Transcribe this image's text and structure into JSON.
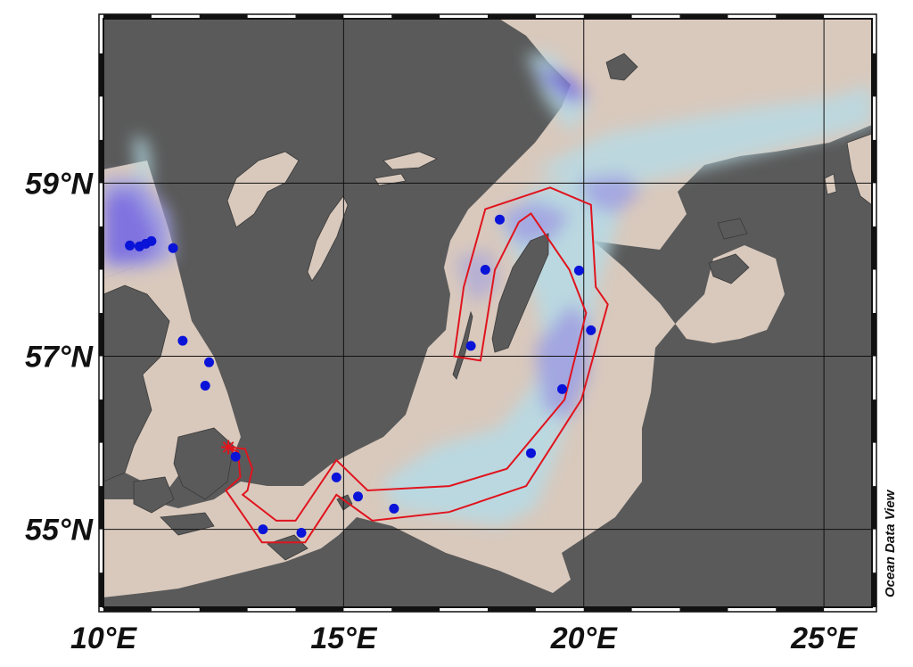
{
  "map": {
    "credit": "Ocean Data View",
    "lon_range": [
      10,
      26
    ],
    "lat_range": [
      54.1,
      60.9
    ],
    "lon_ticks": [
      {
        "value": 10,
        "label": "10°E"
      },
      {
        "value": 15,
        "label": "15°E"
      },
      {
        "value": 20,
        "label": "20°E"
      },
      {
        "value": 25,
        "label": "25°E"
      }
    ],
    "lat_ticks": [
      {
        "value": 55,
        "label": "55°N"
      },
      {
        "value": 57,
        "label": "57°N"
      },
      {
        "value": 59,
        "label": "59°N"
      }
    ],
    "gridlines": [
      {
        "axis": "lon",
        "value": 15
      },
      {
        "axis": "lon",
        "value": 20
      },
      {
        "axis": "lon",
        "value": 25
      },
      {
        "axis": "lat",
        "value": 55
      },
      {
        "axis": "lat",
        "value": 57
      },
      {
        "axis": "lat",
        "value": 59
      }
    ],
    "colors": {
      "land": "#5a5a5a",
      "sea_shallow": "#d9c9bd",
      "sea_mid": "#b5dbe6",
      "sea_deep": "#9f9ee2",
      "sea_deepest": "#7c6ee0",
      "stations": "#0a13d8",
      "route": "#e0141e"
    },
    "stations": [
      {
        "lon": 10.55,
        "lat": 58.28
      },
      {
        "lon": 10.75,
        "lat": 58.27
      },
      {
        "lon": 10.88,
        "lat": 58.3
      },
      {
        "lon": 11.0,
        "lat": 58.33
      },
      {
        "lon": 11.45,
        "lat": 58.25
      },
      {
        "lon": 11.65,
        "lat": 57.18
      },
      {
        "lon": 12.2,
        "lat": 56.93
      },
      {
        "lon": 12.12,
        "lat": 56.66
      },
      {
        "lon": 12.75,
        "lat": 55.84
      },
      {
        "lon": 13.32,
        "lat": 55.0
      },
      {
        "lon": 14.12,
        "lat": 54.96
      },
      {
        "lon": 14.85,
        "lat": 55.6
      },
      {
        "lon": 15.3,
        "lat": 55.38
      },
      {
        "lon": 16.05,
        "lat": 55.24
      },
      {
        "lon": 18.9,
        "lat": 55.88
      },
      {
        "lon": 19.55,
        "lat": 56.62
      },
      {
        "lon": 20.15,
        "lat": 57.3
      },
      {
        "lon": 19.9,
        "lat": 57.99
      },
      {
        "lon": 17.65,
        "lat": 57.12
      },
      {
        "lon": 17.95,
        "lat": 58.0
      },
      {
        "lon": 18.25,
        "lat": 58.58
      }
    ],
    "marker": {
      "lon": 12.6,
      "lat": 55.95
    },
    "route": [
      {
        "lon": 12.55,
        "lat": 55.95
      },
      {
        "lon": 12.95,
        "lat": 55.93
      },
      {
        "lon": 13.1,
        "lat": 55.7
      },
      {
        "lon": 13.0,
        "lat": 55.45
      },
      {
        "lon": 12.9,
        "lat": 55.4
      },
      {
        "lon": 13.6,
        "lat": 55.1
      },
      {
        "lon": 14.0,
        "lat": 55.1
      },
      {
        "lon": 14.85,
        "lat": 55.8
      },
      {
        "lon": 15.5,
        "lat": 55.45
      },
      {
        "lon": 17.2,
        "lat": 55.5
      },
      {
        "lon": 18.4,
        "lat": 55.7
      },
      {
        "lon": 19.6,
        "lat": 56.5
      },
      {
        "lon": 20.05,
        "lat": 57.5
      },
      {
        "lon": 19.7,
        "lat": 58.0
      },
      {
        "lon": 18.9,
        "lat": 58.65
      },
      {
        "lon": 18.65,
        "lat": 58.55
      },
      {
        "lon": 18.15,
        "lat": 58.0
      },
      {
        "lon": 17.85,
        "lat": 56.95
      },
      {
        "lon": 17.3,
        "lat": 57.0
      },
      {
        "lon": 17.5,
        "lat": 57.8
      },
      {
        "lon": 17.95,
        "lat": 58.7
      },
      {
        "lon": 19.3,
        "lat": 58.95
      },
      {
        "lon": 20.15,
        "lat": 58.75
      },
      {
        "lon": 20.25,
        "lat": 57.8
      },
      {
        "lon": 20.5,
        "lat": 57.6
      },
      {
        "lon": 19.95,
        "lat": 56.5
      },
      {
        "lon": 18.8,
        "lat": 55.5
      },
      {
        "lon": 17.2,
        "lat": 55.2
      },
      {
        "lon": 15.6,
        "lat": 55.1
      },
      {
        "lon": 14.85,
        "lat": 55.4
      },
      {
        "lon": 14.2,
        "lat": 54.85
      },
      {
        "lon": 13.3,
        "lat": 54.85
      },
      {
        "lon": 12.55,
        "lat": 55.45
      },
      {
        "lon": 12.85,
        "lat": 55.6
      },
      {
        "lon": 12.8,
        "lat": 55.9
      }
    ]
  }
}
